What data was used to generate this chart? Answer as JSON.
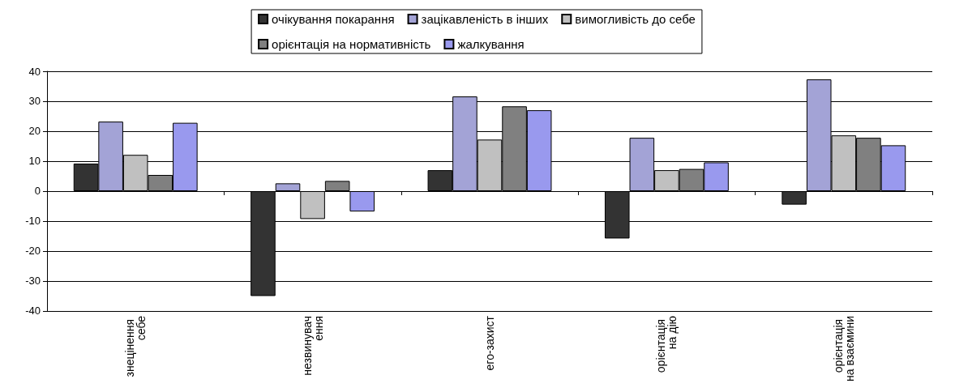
{
  "chart_data": {
    "type": "bar",
    "categories": [
      "знецінення себе",
      "незвинувачення",
      "его-захист",
      "орієнтація на дію",
      "орієнтація на взаємини"
    ],
    "series": [
      {
        "name": "очікування покарання",
        "color": "#333333",
        "values": [
          9.2,
          -35,
          7.0,
          -15.8,
          -4.5
        ]
      },
      {
        "name": "зацікавленість в інших",
        "color": "#a3a3d6",
        "values": [
          23.2,
          2.6,
          31.6,
          17.8,
          37.3
        ]
      },
      {
        "name": "вимогливість до себе",
        "color": "#c0c0c0",
        "values": [
          12.1,
          -9.3,
          17.2,
          7.0,
          18.6
        ]
      },
      {
        "name": "орієнтація на нормативність",
        "color": "#808080",
        "values": [
          5.4,
          3.4,
          28.3,
          7.4,
          17.8
        ]
      },
      {
        "name": "жалкування",
        "color": "#9999ee",
        "values": [
          22.8,
          -6.8,
          27.0,
          9.6,
          15.3
        ]
      }
    ],
    "ylim": [
      -40,
      40
    ],
    "yticks": [
      -40,
      -30,
      -20,
      -10,
      0,
      10,
      20,
      30,
      40
    ],
    "grid": "y",
    "legend": "top"
  }
}
